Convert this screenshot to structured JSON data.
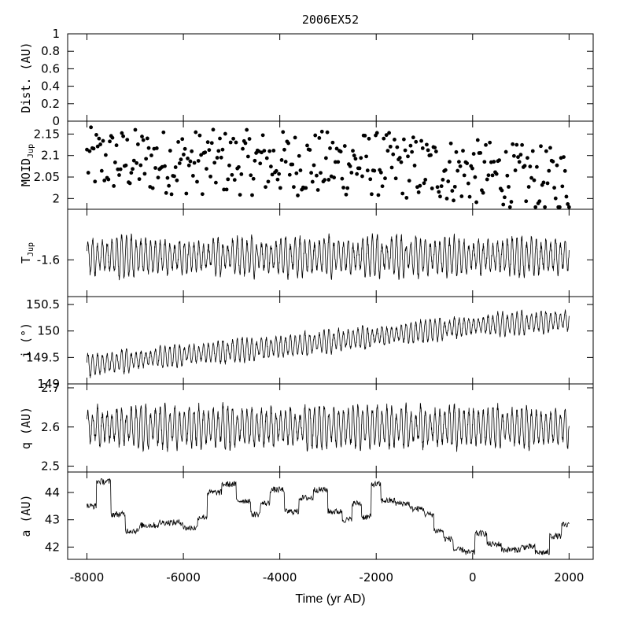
{
  "chart_data": {
    "type": "line",
    "title": "2006EX52",
    "xlabel": "Time (yr AD)",
    "xlim": [
      -8400,
      2500
    ],
    "x_ticks": [
      -8000,
      -6000,
      -4000,
      -2000,
      0,
      2000
    ],
    "x_tick_labels": [
      "-8000",
      "-6000",
      "-4000",
      "-2000",
      "0",
      "2000"
    ],
    "panels": [
      {
        "id": "dist",
        "type": "line",
        "ylabel": "Dist. (AU)",
        "ylabel_sub": "",
        "ylim": [
          0,
          1
        ],
        "y_ticks": [
          0,
          0.2,
          0.4,
          0.6,
          0.8,
          1
        ],
        "y_tick_labels": [
          "0",
          "0.2",
          "0.4",
          "0.6",
          "0.8",
          "1"
        ],
        "series": []
      },
      {
        "id": "moid",
        "type": "scatter",
        "ylabel": "MOID",
        "ylabel_sub": "Jup",
        "ylim": [
          1.975,
          2.18
        ],
        "y_ticks": [
          2,
          2.05,
          2.1,
          2.15
        ],
        "y_tick_labels": [
          "2",
          "2.05",
          "2.1",
          "2.15"
        ],
        "trend": [
          [
            -8000,
            2.09
          ],
          [
            -6000,
            2.085
          ],
          [
            -4000,
            2.083
          ],
          [
            -2000,
            2.08
          ],
          [
            0,
            2.062
          ],
          [
            2000,
            2.04
          ]
        ],
        "spread": 0.085,
        "n_points": 360
      },
      {
        "id": "tjup",
        "type": "line",
        "ylabel": "T",
        "ylabel_sub": "Jup",
        "ylim": [
          -1.68,
          -1.49
        ],
        "y_ticks": [
          -1.6
        ],
        "y_tick_labels": [
          "-1.6"
        ],
        "trend": [
          [
            -8000,
            -1.593
          ],
          [
            2000,
            -1.593
          ]
        ],
        "amplitude": 0.04,
        "period": 100
      },
      {
        "id": "incl",
        "type": "line",
        "ylabel": "i (°)",
        "ylabel_sub": "",
        "ylim": [
          149,
          150.65
        ],
        "y_ticks": [
          149,
          149.5,
          150,
          150.5
        ],
        "y_tick_labels": [
          "149",
          "149.5",
          "150",
          "150.5"
        ],
        "trend": [
          [
            -8000,
            149.35
          ],
          [
            -6000,
            149.55
          ],
          [
            -4000,
            149.7
          ],
          [
            -2000,
            149.9
          ],
          [
            0,
            150.1
          ],
          [
            2000,
            150.2
          ]
        ],
        "amplitude": 0.2,
        "period": 100
      },
      {
        "id": "q",
        "type": "line",
        "ylabel": "q (AU)",
        "ylabel_sub": "",
        "ylim": [
          2.485,
          2.71
        ],
        "y_ticks": [
          2.5,
          2.6,
          2.7
        ],
        "y_tick_labels": [
          "2.5",
          "2.6",
          "2.7"
        ],
        "trend": [
          [
            -8000,
            2.6
          ],
          [
            2000,
            2.6
          ]
        ],
        "amplitude": 0.05,
        "period": 100
      },
      {
        "id": "a",
        "type": "line",
        "ylabel": "a (AU)",
        "ylabel_sub": "",
        "ylim": [
          41.55,
          44.75
        ],
        "y_ticks": [
          42,
          43,
          44
        ],
        "y_tick_labels": [
          "42",
          "43",
          "44"
        ],
        "steps": [
          [
            -8000,
            43.5
          ],
          [
            -7800,
            44.4
          ],
          [
            -7500,
            43.2
          ],
          [
            -7200,
            42.6
          ],
          [
            -6900,
            42.8
          ],
          [
            -6500,
            42.9
          ],
          [
            -6000,
            42.7
          ],
          [
            -5700,
            43.1
          ],
          [
            -5500,
            44.0
          ],
          [
            -5200,
            44.3
          ],
          [
            -4900,
            43.7
          ],
          [
            -4600,
            43.2
          ],
          [
            -4400,
            43.6
          ],
          [
            -4200,
            44.1
          ],
          [
            -3900,
            43.3
          ],
          [
            -3600,
            43.8
          ],
          [
            -3300,
            44.1
          ],
          [
            -3000,
            43.3
          ],
          [
            -2700,
            43.0
          ],
          [
            -2500,
            43.6
          ],
          [
            -2300,
            43.1
          ],
          [
            -2100,
            44.3
          ],
          [
            -1900,
            43.7
          ],
          [
            -1600,
            43.6
          ],
          [
            -1300,
            43.4
          ],
          [
            -1000,
            43.2
          ],
          [
            -800,
            42.6
          ],
          [
            -600,
            42.3
          ],
          [
            -400,
            41.9
          ],
          [
            -150,
            41.8
          ],
          [
            50,
            42.5
          ],
          [
            300,
            42.1
          ],
          [
            600,
            41.9
          ],
          [
            1000,
            42.0
          ],
          [
            1300,
            41.8
          ],
          [
            1600,
            42.4
          ],
          [
            1850,
            42.8
          ],
          [
            2000,
            42.9
          ]
        ]
      }
    ]
  }
}
